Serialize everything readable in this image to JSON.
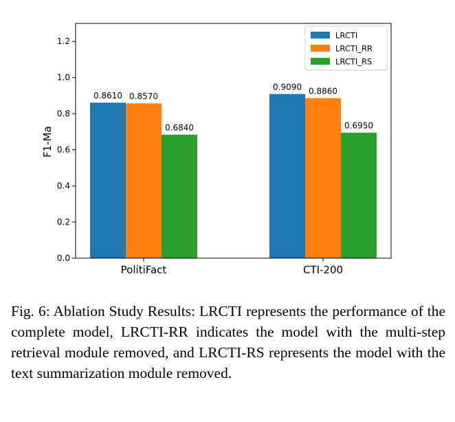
{
  "chart_data": {
    "type": "bar",
    "title": "",
    "xlabel": "",
    "ylabel": "F1-Ma",
    "ylim": [
      0,
      1.3
    ],
    "yticks": [
      "0.0",
      "0.2",
      "0.4",
      "0.6",
      "0.8",
      "1.0",
      "1.2"
    ],
    "categories": [
      "PolitiFact",
      "CTI-200"
    ],
    "series": [
      {
        "name": "LRCTI",
        "values": [
          0.861,
          0.909
        ],
        "labels": [
          "0.8610",
          "0.9090"
        ],
        "color": "#1f77b4"
      },
      {
        "name": "LRCTI_RR",
        "values": [
          0.857,
          0.886
        ],
        "labels": [
          "0.8570",
          "0.8860"
        ],
        "color": "#ff7f0e"
      },
      {
        "name": "LRCTI_RS",
        "values": [
          0.684,
          0.695
        ],
        "labels": [
          "0.6840",
          "0.6950"
        ],
        "color": "#2ca02c"
      }
    ],
    "legend_position": "top-right",
    "grid": false
  },
  "caption": "Fig. 6: Ablation Study Results: LRCTI represents the performance of the complete model, LRCTI-RR indicates the model with the multi-step retrieval module removed, and LRCTI-RS represents the model with the text summarization module removed."
}
